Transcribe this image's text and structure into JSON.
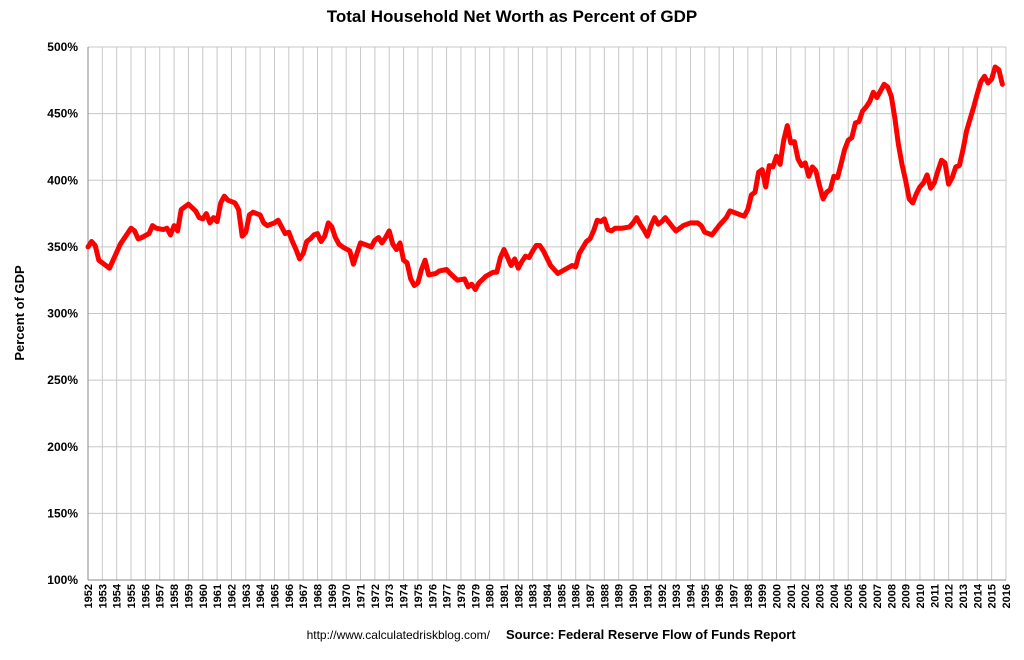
{
  "chart_data": {
    "type": "line",
    "title": "Total Household Net Worth as Percent of GDP",
    "y_label": "Percent of GDP",
    "source_url": "http://www.calculatedriskblog.com/",
    "source": "Source: Federal Reserve Flow of Funds Report",
    "color": "#ff0000",
    "grid": true,
    "xlim": [
      1952,
      2016
    ],
    "xticks": [
      1952,
      1953,
      1954,
      1955,
      1956,
      1957,
      1958,
      1959,
      1960,
      1961,
      1962,
      1963,
      1964,
      1965,
      1966,
      1967,
      1968,
      1969,
      1970,
      1971,
      1972,
      1973,
      1974,
      1975,
      1976,
      1977,
      1978,
      1979,
      1980,
      1981,
      1982,
      1983,
      1984,
      1985,
      1986,
      1987,
      1988,
      1989,
      1990,
      1991,
      1992,
      1993,
      1994,
      1995,
      1996,
      1997,
      1998,
      1999,
      2000,
      2001,
      2002,
      2003,
      2004,
      2005,
      2006,
      2007,
      2008,
      2009,
      2010,
      2011,
      2012,
      2013,
      2014,
      2015,
      2016
    ],
    "ylim": [
      100,
      500
    ],
    "yticks": [
      {
        "value": 100,
        "label": "100%"
      },
      {
        "value": 150,
        "label": "150%"
      },
      {
        "value": 200,
        "label": "200%"
      },
      {
        "value": 250,
        "label": "250%"
      },
      {
        "value": 300,
        "label": "300%"
      },
      {
        "value": 350,
        "label": "350%"
      },
      {
        "value": 400,
        "label": "400%"
      },
      {
        "value": 450,
        "label": "450%"
      },
      {
        "value": 500,
        "label": "500%"
      }
    ],
    "x": [
      1952.0,
      1952.25,
      1952.5,
      1952.75,
      1953.25,
      1953.5,
      1953.75,
      1954.25,
      1954.75,
      1955.0,
      1955.25,
      1955.5,
      1955.75,
      1956.25,
      1956.5,
      1956.75,
      1957.25,
      1957.5,
      1957.75,
      1958.0,
      1958.25,
      1958.5,
      1958.75,
      1959.0,
      1959.5,
      1959.75,
      1960.0,
      1960.25,
      1960.5,
      1960.75,
      1961.0,
      1961.25,
      1961.5,
      1961.75,
      1962.25,
      1962.5,
      1962.75,
      1963.0,
      1963.25,
      1963.5,
      1964.0,
      1964.25,
      1964.5,
      1965.0,
      1965.25,
      1965.5,
      1965.75,
      1966.0,
      1966.25,
      1966.5,
      1966.75,
      1967.0,
      1967.25,
      1967.5,
      1967.75,
      1968.0,
      1968.25,
      1968.5,
      1968.75,
      1969.0,
      1969.25,
      1969.5,
      1969.75,
      1970.25,
      1970.5,
      1970.75,
      1971.0,
      1971.25,
      1971.75,
      1972.0,
      1972.25,
      1972.5,
      1972.75,
      1973.0,
      1973.25,
      1973.5,
      1973.75,
      1974.0,
      1974.25,
      1974.5,
      1974.75,
      1975.0,
      1975.25,
      1975.5,
      1975.75,
      1976.25,
      1976.5,
      1977.0,
      1977.25,
      1977.75,
      1978.25,
      1978.5,
      1978.75,
      1979.0,
      1979.25,
      1979.75,
      1980.25,
      1980.5,
      1980.75,
      1981.0,
      1981.25,
      1981.5,
      1981.75,
      1982.0,
      1982.25,
      1982.5,
      1982.75,
      1983.0,
      1983.25,
      1983.5,
      1983.75,
      1984.25,
      1984.75,
      1985.25,
      1985.75,
      1986.0,
      1986.25,
      1986.75,
      1987.0,
      1987.25,
      1987.5,
      1987.75,
      1988.0,
      1988.25,
      1988.5,
      1988.75,
      1989.25,
      1989.75,
      1990.0,
      1990.25,
      1990.5,
      1990.75,
      1991.0,
      1991.25,
      1991.5,
      1991.75,
      1992.0,
      1992.25,
      1992.75,
      1993.0,
      1993.5,
      1994.0,
      1994.5,
      1994.75,
      1995.0,
      1995.5,
      1996.0,
      1996.5,
      1996.75,
      1997.0,
      1997.5,
      1997.75,
      1998.0,
      1998.25,
      1998.5,
      1998.75,
      1999.0,
      1999.25,
      1999.5,
      1999.75,
      2000.0,
      2000.25,
      2000.5,
      2000.75,
      2001.0,
      2001.25,
      2001.5,
      2001.75,
      2002.0,
      2002.25,
      2002.5,
      2002.75,
      2003.0,
      2003.25,
      2003.5,
      2003.75,
      2004.0,
      2004.25,
      2004.5,
      2004.75,
      2005.0,
      2005.25,
      2005.5,
      2005.75,
      2006.0,
      2006.25,
      2006.5,
      2006.75,
      2007.0,
      2007.25,
      2007.5,
      2007.75,
      2008.0,
      2008.25,
      2008.5,
      2008.75,
      2009.0,
      2009.25,
      2009.5,
      2009.75,
      2010.0,
      2010.25,
      2010.5,
      2010.75,
      2011.0,
      2011.25,
      2011.5,
      2011.75,
      2012.0,
      2012.25,
      2012.5,
      2012.75,
      2013.0,
      2013.25,
      2013.5,
      2013.75,
      2014.0,
      2014.25,
      2014.5,
      2014.75,
      2015.0,
      2015.25,
      2015.5,
      2015.75
    ],
    "values": [
      350,
      354,
      351,
      340,
      336,
      334,
      340,
      352,
      360,
      364,
      362,
      356,
      357,
      360,
      366,
      364,
      363,
      364,
      359,
      366,
      362,
      378,
      380,
      382,
      377,
      372,
      371,
      375,
      368,
      372,
      369,
      383,
      388,
      385,
      383,
      378,
      358,
      361,
      374,
      376,
      374,
      368,
      366,
      368,
      370,
      365,
      360,
      361,
      354,
      348,
      341,
      345,
      354,
      356,
      359,
      360,
      354,
      358,
      368,
      365,
      357,
      352,
      350,
      347,
      337,
      345,
      353,
      352,
      350,
      355,
      357,
      353,
      357,
      362,
      352,
      348,
      353,
      340,
      338,
      326,
      321,
      323,
      333,
      340,
      329,
      330,
      332,
      333,
      330,
      325,
      326,
      320,
      322,
      318,
      323,
      328,
      331,
      331,
      342,
      348,
      342,
      336,
      341,
      334,
      339,
      343,
      342,
      347,
      351,
      351,
      347,
      336,
      330,
      333,
      336,
      335,
      345,
      354,
      356,
      362,
      370,
      369,
      371,
      363,
      362,
      364,
      364,
      365,
      368,
      372,
      367,
      363,
      358,
      366,
      372,
      367,
      369,
      372,
      365,
      362,
      366,
      368,
      368,
      366,
      361,
      359,
      366,
      372,
      377,
      376,
      374,
      373,
      378,
      389,
      391,
      406,
      408,
      395,
      411,
      410,
      418,
      412,
      430,
      441,
      428,
      429,
      416,
      411,
      413,
      403,
      410,
      407,
      396,
      386,
      391,
      393,
      403,
      402,
      412,
      423,
      430,
      432,
      443,
      444,
      452,
      455,
      459,
      466,
      462,
      467,
      472,
      470,
      463,
      447,
      427,
      412,
      400,
      386,
      383,
      390,
      395,
      398,
      404,
      394,
      398,
      407,
      415,
      413,
      397,
      402,
      410,
      411,
      423,
      437,
      446,
      455,
      465,
      474,
      478,
      473,
      476,
      485,
      483,
      472
    ]
  }
}
